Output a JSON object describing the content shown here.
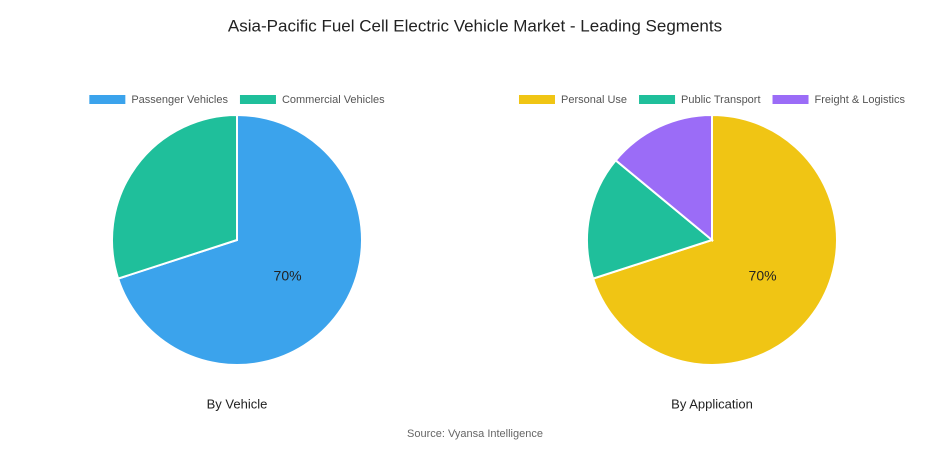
{
  "title": "Asia-Pacific Fuel Cell Electric Vehicle Market - Leading Segments",
  "source": "Source: Vyansa Intelligence",
  "chart_data": [
    {
      "type": "pie",
      "title": "By Vehicle",
      "categories": [
        "Passenger Vehicles",
        "Commercial Vehicles"
      ],
      "values": [
        70,
        30
      ],
      "value_labels": [
        "70%",
        null
      ],
      "colors": [
        "#3ba3ec",
        "#1fbf9b"
      ]
    },
    {
      "type": "pie",
      "title": "By Application",
      "categories": [
        "Personal Use",
        "Public Transport",
        "Freight & Logistics"
      ],
      "values": [
        70,
        16,
        14
      ],
      "value_labels": [
        "70%",
        null,
        null
      ],
      "colors": [
        "#f0c514",
        "#1fbf9b",
        "#9b6cf7"
      ]
    }
  ]
}
